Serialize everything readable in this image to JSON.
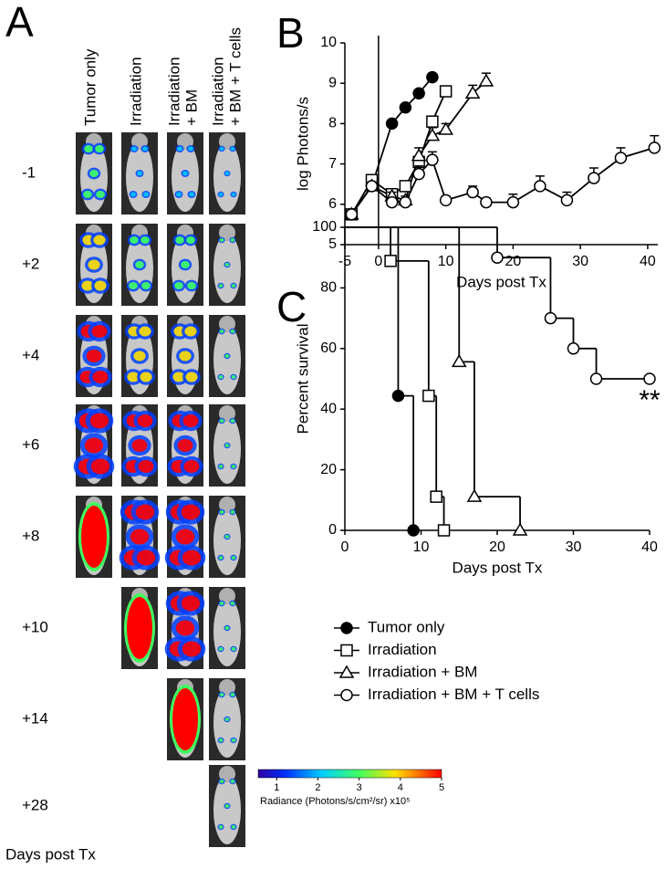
{
  "panel_a": {
    "label": "A",
    "columns": [
      [
        "Tumor only"
      ],
      [
        "Irradiation"
      ],
      [
        "Irradiation",
        "+ BM"
      ],
      [
        "Irradiation",
        "+ BM + T cells"
      ]
    ],
    "rows": [
      "-1",
      "+2",
      "+4",
      "+6",
      "+8",
      "+10",
      "+14",
      "+28"
    ],
    "footer": "Days post Tx",
    "colorbar": {
      "lim": [
        0.55,
        5
      ],
      "ticks": [
        1,
        2,
        3,
        4,
        5
      ],
      "label": "Radiance (Photons/s/cm²/sr) x10⁵"
    }
  },
  "chart_data": [
    {
      "type": "line",
      "panel": "B",
      "ylabel": "log Photons/s",
      "xlabel": "Days post Tx",
      "xlim": [
        -5,
        41.5
      ],
      "xticks": [
        -5,
        0,
        10,
        20,
        30,
        40
      ],
      "ylim": [
        5,
        10
      ],
      "yticks": [
        5,
        6,
        7,
        8,
        9,
        10
      ],
      "reference_x": 0,
      "series": [
        {
          "marker": "circle",
          "fill": "#000000",
          "color": "#000000",
          "x": [
            -4,
            -1,
            2,
            4,
            6,
            8
          ],
          "values": [
            5.75,
            6.45,
            8.0,
            8.4,
            8.75,
            9.15
          ]
        },
        {
          "marker": "square",
          "fill": "#ffffff",
          "color": "#000000",
          "x": [
            -4,
            -1,
            2,
            4,
            6,
            8,
            10
          ],
          "values": [
            5.75,
            6.6,
            6.25,
            6.45,
            7.05,
            8.05,
            8.8
          ]
        },
        {
          "marker": "triangle",
          "fill": "#ffffff",
          "color": "#000000",
          "x": [
            -4,
            -1,
            2,
            4,
            6,
            8,
            10,
            14,
            16
          ],
          "values": [
            5.75,
            6.45,
            6.2,
            6.1,
            7.2,
            7.7,
            7.85,
            8.75,
            9.05
          ],
          "errors": [
            0.05,
            0.1,
            0.1,
            0.1,
            0.2,
            0.2,
            0.15,
            0.2,
            0.2
          ]
        },
        {
          "marker": "circle",
          "fill": "#ffffff",
          "color": "#000000",
          "x": [
            -4,
            -1,
            2,
            4,
            6,
            8,
            10,
            14,
            16,
            20,
            24,
            28,
            32,
            36,
            41
          ],
          "values": [
            5.75,
            6.45,
            6.05,
            6.05,
            6.75,
            7.1,
            6.1,
            6.3,
            6.05,
            6.05,
            6.45,
            6.1,
            6.65,
            7.15,
            7.4
          ],
          "errors": [
            0.05,
            0.1,
            0.1,
            0.1,
            0.2,
            0.2,
            0.1,
            0.15,
            0.1,
            0.2,
            0.25,
            0.2,
            0.25,
            0.25,
            0.3
          ]
        }
      ]
    },
    {
      "type": "step",
      "panel": "C",
      "ylabel": "Percent survival",
      "xlabel": "Days post Tx",
      "annotation": "**",
      "xlim": [
        0,
        40
      ],
      "xticks": [
        0,
        10,
        20,
        30,
        40
      ],
      "ylim": [
        0,
        100
      ],
      "yticks": [
        0,
        20,
        40,
        60,
        80,
        100
      ],
      "series": [
        {
          "name": "Tumor only",
          "marker": "circle",
          "fill": "#000000",
          "color": "#000000",
          "x": [
            0,
            7,
            9
          ],
          "values": [
            100,
            44.4,
            0
          ]
        },
        {
          "name": "Irradiation",
          "marker": "square",
          "fill": "#ffffff",
          "color": "#000000",
          "x": [
            0,
            6,
            11,
            12,
            13
          ],
          "values": [
            100,
            88.9,
            44.4,
            11.1,
            0
          ]
        },
        {
          "name": "Irradiation + BM",
          "marker": "triangle",
          "fill": "#ffffff",
          "color": "#000000",
          "x": [
            0,
            15,
            17,
            23
          ],
          "values": [
            100,
            55.6,
            11.1,
            0
          ]
        },
        {
          "name": "Irradiation + BM + T cells",
          "marker": "circle",
          "fill": "#ffffff",
          "color": "#000000",
          "x": [
            0,
            20,
            27,
            30,
            33,
            40
          ],
          "values": [
            100,
            90,
            70,
            60,
            50,
            50
          ]
        }
      ]
    }
  ]
}
